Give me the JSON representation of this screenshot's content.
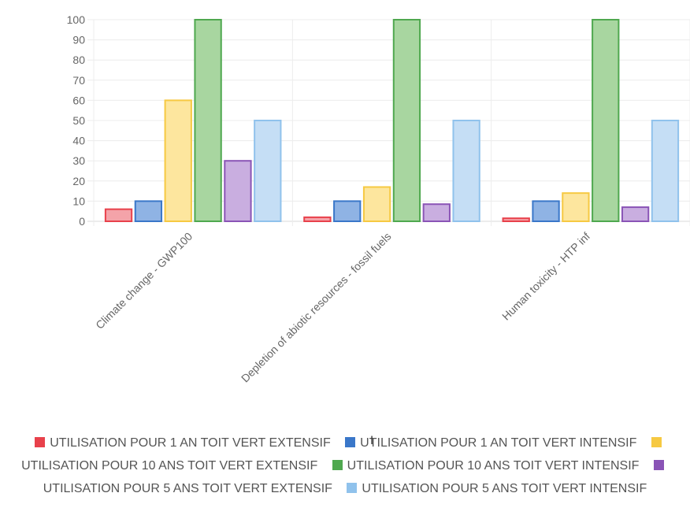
{
  "chart_data": {
    "type": "bar",
    "categories": [
      "Climate change - GWP100",
      "Depletion of abiotic resources - fossil fuels",
      "Human toxicity - HTP inf"
    ],
    "ylim": [
      0,
      100
    ],
    "yticks": [
      0,
      10,
      20,
      30,
      40,
      50,
      60,
      70,
      80,
      90,
      100
    ],
    "grid": true,
    "legend_position": "bottom",
    "series": [
      {
        "name": "UTILISATION POUR 1 AN TOIT VERT EXTENSIF",
        "values": [
          6,
          2,
          1.5
        ],
        "color": "#e8414b",
        "fill": "#f4a3a9"
      },
      {
        "name": "UTILISATION POUR 1 AN TOIT VERT INTENSIF",
        "values": [
          10,
          10,
          10
        ],
        "color": "#3a77c9",
        "fill": "#8fb3e4"
      },
      {
        "name": "UTILISATION POUR 10 ANS TOIT VERT EXTENSIF",
        "values": [
          60,
          17,
          14
        ],
        "color": "#f6c942",
        "fill": "#fde69e"
      },
      {
        "name": "UTILISATION POUR 10 ANS TOIT VERT INTENSIF",
        "values": [
          100,
          100,
          100
        ],
        "color": "#4fa84f",
        "fill": "#a8d6a0"
      },
      {
        "name": "UTILISATION POUR 5 ANS TOIT VERT EXTENSIF",
        "values": [
          30,
          8.5,
          7
        ],
        "color": "#8a54b6",
        "fill": "#c9aee0"
      },
      {
        "name": "UTILISATION POUR 5 ANS TOIT VERT INTENSIF",
        "values": [
          50,
          50,
          50
        ],
        "color": "#90c2ec",
        "fill": "#c5def5"
      }
    ]
  }
}
